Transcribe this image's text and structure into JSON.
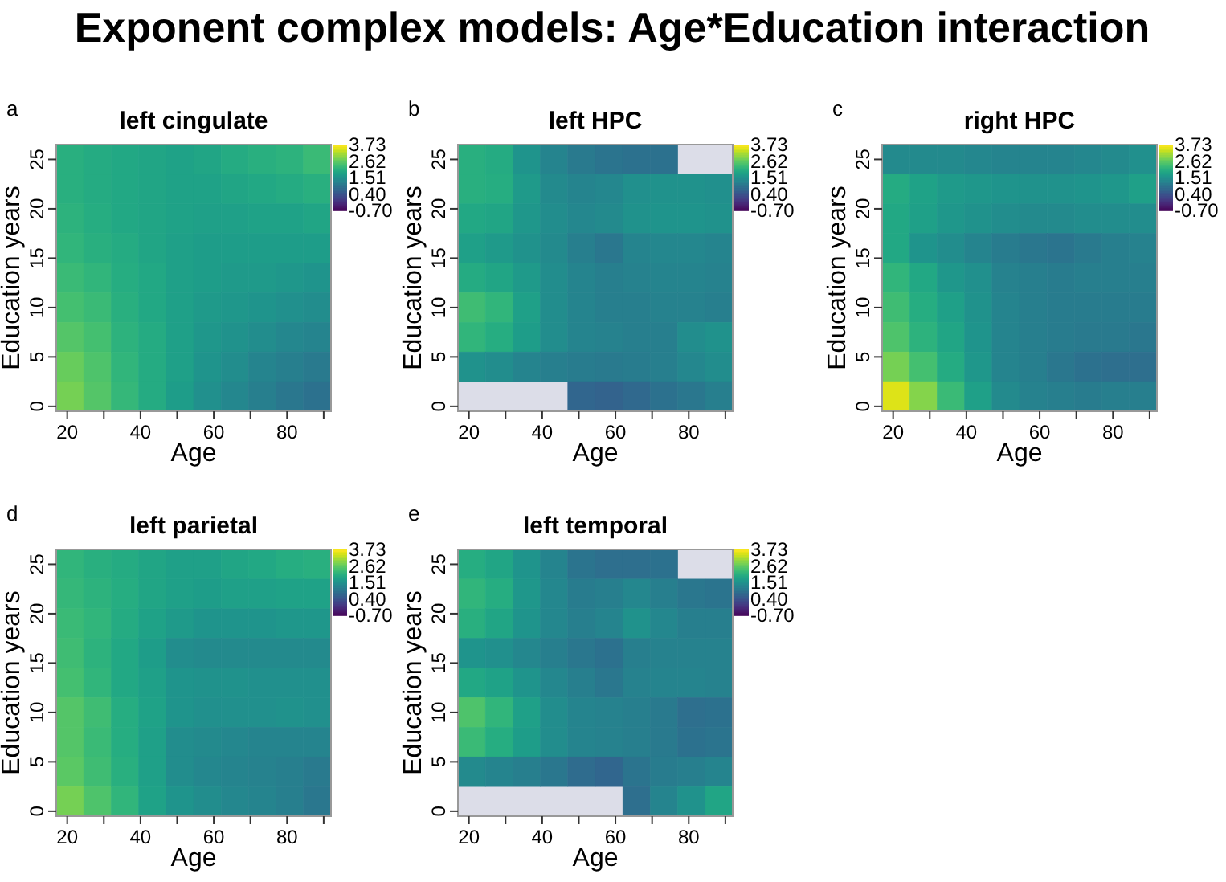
{
  "chart_data": [
    {
      "type": "heatmap",
      "title": "left cingulate",
      "xlabel": "Age",
      "ylabel": "Education years",
      "annotations": [
        "a",
        "Exponent complex models: Age*Education interaction"
      ],
      "x": [
        20.75,
        28.25,
        35.75,
        43.25,
        50.75,
        58.25,
        65.75,
        73.25,
        80.75,
        88.25
      ],
      "y": [
        25,
        22,
        19,
        16,
        13,
        10,
        7,
        4,
        1
      ],
      "xlim": [
        17,
        92
      ],
      "ylim": [
        -0.5,
        26.5
      ],
      "xticks": [
        20,
        {
          "value": 30,
          "label": null
        },
        40,
        {
          "value": 50,
          "label": null
        },
        60,
        {
          "value": 70,
          "label": null
        },
        80,
        {
          "value": 90,
          "label": null
        }
      ],
      "yticks": [
        0,
        5,
        10,
        15,
        20,
        25
      ],
      "clim": [
        -0.7,
        3.73
      ],
      "cticks": [
        {
          "value": 3.73,
          "label": "3.73"
        },
        {
          "value": 2.62,
          "label": "2.62"
        },
        {
          "value": 1.51,
          "label": "1.51"
        },
        {
          "value": 0.4,
          "label": "0.40"
        },
        {
          "value": -0.7,
          "label": "-0.70"
        }
      ],
      "cells": [
        [
          2.1,
          2.0,
          1.95,
          1.9,
          1.85,
          1.9,
          2.0,
          2.1,
          2.15,
          2.3
        ],
        [
          2.1,
          2.0,
          1.95,
          1.9,
          1.85,
          1.85,
          1.9,
          1.95,
          2.0,
          2.1
        ],
        [
          2.15,
          2.05,
          1.95,
          1.9,
          1.85,
          1.8,
          1.8,
          1.85,
          1.85,
          1.9
        ],
        [
          2.2,
          2.1,
          2.0,
          1.9,
          1.8,
          1.75,
          1.75,
          1.75,
          1.75,
          1.75
        ],
        [
          2.3,
          2.2,
          2.05,
          1.95,
          1.8,
          1.75,
          1.7,
          1.7,
          1.65,
          1.6
        ],
        [
          2.4,
          2.3,
          2.1,
          1.95,
          1.8,
          1.7,
          1.65,
          1.6,
          1.5,
          1.45
        ],
        [
          2.55,
          2.4,
          2.15,
          2.0,
          1.8,
          1.65,
          1.55,
          1.45,
          1.35,
          1.3
        ],
        [
          2.7,
          2.5,
          2.2,
          2.0,
          1.8,
          1.6,
          1.45,
          1.3,
          1.2,
          1.1
        ],
        [
          2.8,
          2.55,
          2.25,
          2.0,
          1.75,
          1.5,
          1.35,
          1.2,
          1.05,
          0.95
        ]
      ]
    },
    {
      "type": "heatmap",
      "title": "left HPC",
      "xlabel": "Age",
      "ylabel": "Education years",
      "annotations": [
        "b"
      ],
      "x": [
        20.75,
        28.25,
        35.75,
        43.25,
        50.75,
        58.25,
        65.75,
        73.25,
        80.75,
        88.25
      ],
      "y": [
        25,
        22,
        19,
        16,
        13,
        10,
        7,
        4,
        1
      ],
      "xlim": [
        17,
        92
      ],
      "ylim": [
        -0.5,
        26.5
      ],
      "xticks": [
        20,
        {
          "value": 30,
          "label": null
        },
        40,
        {
          "value": 50,
          "label": null
        },
        60,
        {
          "value": 70,
          "label": null
        },
        80,
        {
          "value": 90,
          "label": null
        }
      ],
      "yticks": [
        0,
        5,
        10,
        15,
        20,
        25
      ],
      "clim": [
        -0.7,
        3.73
      ],
      "cticks": [
        {
          "value": 3.73,
          "label": "3.73"
        },
        {
          "value": 2.62,
          "label": "2.62"
        },
        {
          "value": 1.51,
          "label": "1.51"
        },
        {
          "value": 0.4,
          "label": "0.40"
        },
        {
          "value": -0.7,
          "label": "-0.70"
        }
      ],
      "cells": [
        [
          2.1,
          2.0,
          1.6,
          1.3,
          1.1,
          1.0,
          0.95,
          0.95,
          null,
          null
        ],
        [
          2.1,
          2.05,
          1.7,
          1.4,
          1.3,
          1.35,
          1.5,
          1.55,
          1.55,
          1.5
        ],
        [
          1.95,
          1.9,
          1.65,
          1.45,
          1.35,
          1.4,
          1.55,
          1.6,
          1.6,
          1.55
        ],
        [
          1.8,
          1.7,
          1.55,
          1.4,
          1.2,
          1.05,
          1.3,
          1.35,
          1.35,
          1.3
        ],
        [
          2.0,
          1.9,
          1.7,
          1.45,
          1.3,
          1.2,
          1.25,
          1.3,
          1.3,
          1.25
        ],
        [
          2.35,
          2.2,
          1.8,
          1.45,
          1.3,
          1.2,
          1.2,
          1.25,
          1.25,
          1.2
        ],
        [
          2.2,
          2.05,
          1.75,
          1.45,
          1.3,
          1.25,
          1.2,
          1.2,
          1.45,
          1.55
        ],
        [
          1.55,
          1.45,
          1.3,
          1.2,
          1.15,
          1.1,
          1.15,
          1.2,
          1.35,
          1.45
        ],
        [
          null,
          null,
          null,
          null,
          0.75,
          0.7,
          0.8,
          0.95,
          1.05,
          1.2
        ]
      ]
    },
    {
      "type": "heatmap",
      "title": "right HPC",
      "xlabel": "Age",
      "ylabel": "Education years",
      "annotations": [
        "c"
      ],
      "x": [
        20.75,
        28.25,
        35.75,
        43.25,
        50.75,
        58.25,
        65.75,
        73.25,
        80.75,
        88.25
      ],
      "y": [
        25,
        22,
        19,
        16,
        13,
        10,
        7,
        4,
        1
      ],
      "xlim": [
        17,
        92
      ],
      "ylim": [
        -0.5,
        26.5
      ],
      "xticks": [
        20,
        {
          "value": 30,
          "label": null
        },
        40,
        {
          "value": 50,
          "label": null
        },
        60,
        {
          "value": 70,
          "label": null
        },
        80,
        {
          "value": 90,
          "label": null
        }
      ],
      "yticks": [
        0,
        5,
        10,
        15,
        20,
        25
      ],
      "clim": [
        -0.7,
        3.73
      ],
      "cticks": [
        {
          "value": 3.73,
          "label": "3.73"
        },
        {
          "value": 2.62,
          "label": "2.62"
        },
        {
          "value": 1.51,
          "label": "1.51"
        },
        {
          "value": 0.4,
          "label": "0.40"
        },
        {
          "value": -0.7,
          "label": "-0.70"
        }
      ],
      "cells": [
        [
          1.4,
          1.4,
          1.4,
          1.35,
          1.3,
          1.3,
          1.3,
          1.35,
          1.4,
          1.5
        ],
        [
          2.0,
          1.85,
          1.7,
          1.65,
          1.6,
          1.55,
          1.55,
          1.6,
          1.65,
          1.8
        ],
        [
          1.95,
          1.8,
          1.65,
          1.55,
          1.45,
          1.4,
          1.4,
          1.45,
          1.45,
          1.45
        ],
        [
          1.95,
          1.6,
          1.45,
          1.3,
          1.15,
          1.05,
          1.0,
          1.1,
          1.2,
          1.25
        ],
        [
          2.2,
          1.95,
          1.65,
          1.5,
          1.25,
          1.2,
          1.15,
          1.2,
          1.2,
          1.2
        ],
        [
          2.35,
          2.05,
          1.8,
          1.55,
          1.3,
          1.2,
          1.15,
          1.15,
          1.15,
          1.15
        ],
        [
          2.5,
          2.15,
          1.9,
          1.6,
          1.3,
          1.2,
          1.15,
          1.1,
          1.1,
          1.05
        ],
        [
          2.8,
          2.4,
          2.0,
          1.65,
          1.3,
          1.2,
          1.05,
          0.95,
          0.9,
          0.9
        ],
        [
          3.5,
          2.9,
          2.3,
          1.8,
          1.4,
          1.25,
          1.2,
          1.15,
          1.2,
          1.2
        ]
      ]
    },
    {
      "type": "heatmap",
      "title": "left parietal",
      "xlabel": "Age",
      "ylabel": "Education years",
      "annotations": [
        "d"
      ],
      "x": [
        20.75,
        28.25,
        35.75,
        43.25,
        50.75,
        58.25,
        65.75,
        73.25,
        80.75,
        88.25
      ],
      "y": [
        25,
        22,
        19,
        16,
        13,
        10,
        7,
        4,
        1
      ],
      "xlim": [
        17,
        92
      ],
      "ylim": [
        -0.5,
        26.5
      ],
      "xticks": [
        20,
        {
          "value": 30,
          "label": null
        },
        40,
        {
          "value": 50,
          "label": null
        },
        60,
        {
          "value": 70,
          "label": null
        },
        80,
        {
          "value": 90,
          "label": null
        }
      ],
      "yticks": [
        0,
        5,
        10,
        15,
        20,
        25
      ],
      "clim": [
        -0.7,
        3.73
      ],
      "cticks": [
        {
          "value": 3.73,
          "label": "3.73"
        },
        {
          "value": 2.62,
          "label": "2.62"
        },
        {
          "value": 1.51,
          "label": "1.51"
        },
        {
          "value": 0.4,
          "label": "0.40"
        },
        {
          "value": -0.7,
          "label": "-0.70"
        }
      ],
      "cells": [
        [
          2.2,
          2.1,
          2.0,
          1.9,
          1.8,
          1.8,
          1.9,
          1.95,
          2.05,
          2.1
        ],
        [
          2.25,
          2.15,
          2.05,
          1.9,
          1.8,
          1.75,
          1.8,
          1.8,
          1.85,
          1.85
        ],
        [
          2.3,
          2.2,
          2.0,
          1.85,
          1.7,
          1.6,
          1.6,
          1.6,
          1.65,
          1.65
        ],
        [
          2.35,
          2.15,
          1.95,
          1.75,
          1.45,
          1.4,
          1.4,
          1.4,
          1.4,
          1.4
        ],
        [
          2.4,
          2.2,
          1.95,
          1.8,
          1.6,
          1.55,
          1.55,
          1.5,
          1.5,
          1.5
        ],
        [
          2.55,
          2.35,
          2.05,
          1.85,
          1.6,
          1.5,
          1.5,
          1.5,
          1.55,
          1.5
        ],
        [
          2.55,
          2.3,
          2.05,
          1.8,
          1.45,
          1.4,
          1.35,
          1.3,
          1.3,
          1.3
        ],
        [
          2.6,
          2.35,
          2.1,
          1.8,
          1.45,
          1.35,
          1.3,
          1.25,
          1.2,
          1.1
        ],
        [
          2.8,
          2.5,
          2.2,
          1.85,
          1.6,
          1.45,
          1.35,
          1.3,
          1.2,
          1.05
        ]
      ]
    },
    {
      "type": "heatmap",
      "title": "left temporal",
      "xlabel": "Age",
      "ylabel": "Education years",
      "annotations": [
        "e"
      ],
      "x": [
        20.75,
        28.25,
        35.75,
        43.25,
        50.75,
        58.25,
        65.75,
        73.25,
        80.75,
        88.25
      ],
      "y": [
        25,
        22,
        19,
        16,
        13,
        10,
        7,
        4,
        1
      ],
      "xlim": [
        17,
        92
      ],
      "ylim": [
        -0.5,
        26.5
      ],
      "xticks": [
        20,
        {
          "value": 30,
          "label": null
        },
        40,
        {
          "value": 50,
          "label": null
        },
        60,
        {
          "value": 70,
          "label": null
        },
        80,
        {
          "value": 90,
          "label": null
        }
      ],
      "yticks": [
        0,
        5,
        10,
        15,
        20,
        25
      ],
      "clim": [
        -0.7,
        3.73
      ],
      "cticks": [
        {
          "value": 3.73,
          "label": "3.73"
        },
        {
          "value": 2.62,
          "label": "2.62"
        },
        {
          "value": 1.51,
          "label": "1.51"
        },
        {
          "value": 0.4,
          "label": "0.40"
        },
        {
          "value": -0.7,
          "label": "-0.70"
        }
      ],
      "cells": [
        [
          2.05,
          1.9,
          1.6,
          1.3,
          1.0,
          0.9,
          0.9,
          0.95,
          null,
          null
        ],
        [
          2.2,
          2.05,
          1.65,
          1.35,
          1.15,
          1.2,
          1.35,
          1.2,
          1.05,
          1.0
        ],
        [
          2.1,
          1.9,
          1.6,
          1.35,
          1.2,
          1.3,
          1.55,
          1.35,
          1.2,
          1.2
        ],
        [
          1.6,
          1.5,
          1.35,
          1.2,
          1.05,
          0.95,
          1.2,
          1.25,
          1.25,
          1.25
        ],
        [
          1.95,
          1.85,
          1.6,
          1.35,
          1.2,
          1.05,
          1.25,
          1.3,
          1.3,
          1.25
        ],
        [
          2.5,
          2.2,
          1.8,
          1.45,
          1.3,
          1.25,
          1.2,
          1.1,
          0.9,
          0.95
        ],
        [
          2.3,
          2.05,
          1.75,
          1.45,
          1.3,
          1.25,
          1.2,
          1.1,
          0.95,
          1.0
        ],
        [
          1.4,
          1.3,
          1.2,
          1.05,
          0.85,
          0.75,
          1.0,
          1.15,
          1.2,
          1.3
        ],
        [
          null,
          null,
          null,
          null,
          null,
          null,
          0.9,
          1.3,
          1.55,
          1.9
        ]
      ]
    }
  ]
}
